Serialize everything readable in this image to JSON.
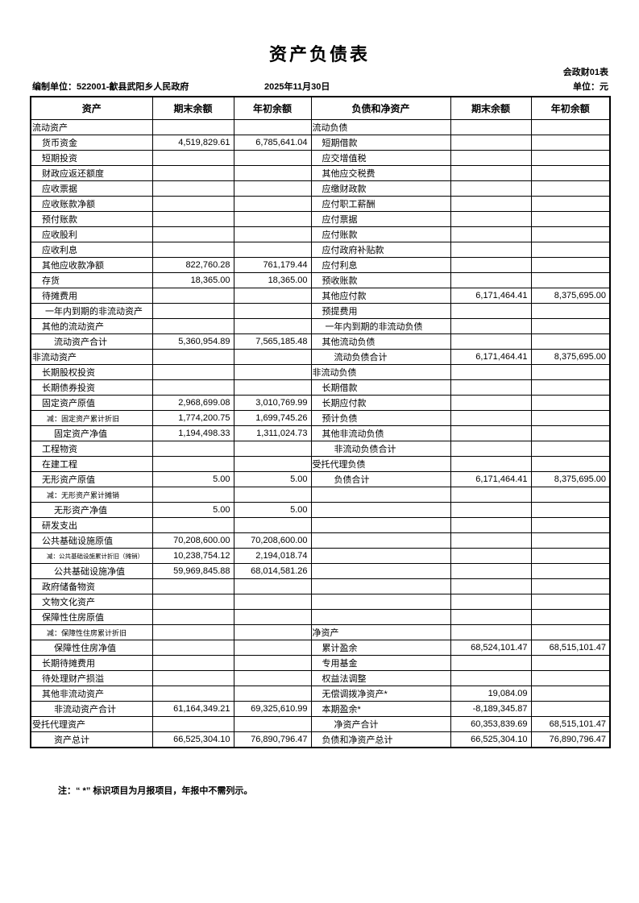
{
  "header": {
    "title": "资产负债表",
    "form_code": "会政财01表",
    "prepared_by": "编制单位：522001-歙县武阳乡人民政府",
    "report_date": "2025年11月30日",
    "unit": "单位：元"
  },
  "table": {
    "columns": [
      "资产",
      "期末余额",
      "年初余额",
      "负债和净资产",
      "期末余额",
      "年初余额"
    ],
    "rows": [
      {
        "l": "流动资产",
        "lt": "sec",
        "l1": "",
        "l2": "",
        "r": "流动负债",
        "rt": "sec",
        "r1": "",
        "r2": ""
      },
      {
        "l": "货币资金",
        "lt": "item",
        "l1": "4,519,829.61",
        "l2": "6,785,641.04",
        "r": "短期借款",
        "rt": "item",
        "r1": "",
        "r2": ""
      },
      {
        "l": "短期投资",
        "lt": "item",
        "l1": "",
        "l2": "",
        "r": "应交增值税",
        "rt": "item",
        "r1": "",
        "r2": ""
      },
      {
        "l": "财政应返还额度",
        "lt": "item",
        "l1": "",
        "l2": "",
        "r": "其他应交税费",
        "rt": "item",
        "r1": "",
        "r2": ""
      },
      {
        "l": "应收票据",
        "lt": "item",
        "l1": "",
        "l2": "",
        "r": "应缴财政款",
        "rt": "item",
        "r1": "",
        "r2": ""
      },
      {
        "l": "应收账款净额",
        "lt": "item",
        "l1": "",
        "l2": "",
        "r": "应付职工薪酬",
        "rt": "item",
        "r1": "",
        "r2": ""
      },
      {
        "l": "预付账款",
        "lt": "item",
        "l1": "",
        "l2": "",
        "r": "应付票据",
        "rt": "item",
        "r1": "",
        "r2": ""
      },
      {
        "l": "应收股利",
        "lt": "item",
        "l1": "",
        "l2": "",
        "r": "应付账款",
        "rt": "item",
        "r1": "",
        "r2": ""
      },
      {
        "l": "应收利息",
        "lt": "item",
        "l1": "",
        "l2": "",
        "r": "应付政府补贴款",
        "rt": "item",
        "r1": "",
        "r2": ""
      },
      {
        "l": "其他应收款净额",
        "lt": "item",
        "l1": "822,760.28",
        "l2": "761,179.44",
        "r": "应付利息",
        "rt": "item",
        "r1": "",
        "r2": ""
      },
      {
        "l": "存货",
        "lt": "item",
        "l1": "18,365.00",
        "l2": "18,365.00",
        "r": "预收账款",
        "rt": "item",
        "r1": "",
        "r2": ""
      },
      {
        "l": "待摊费用",
        "lt": "item",
        "l1": "",
        "l2": "",
        "r": "其他应付款",
        "rt": "item",
        "r1": "6,171,464.41",
        "r2": "8,375,695.00"
      },
      {
        "l": "一年内到期的非流动资产",
        "lt": "item2",
        "l1": "",
        "l2": "",
        "r": "预提费用",
        "rt": "item",
        "r1": "",
        "r2": ""
      },
      {
        "l": "其他的流动资产",
        "lt": "item",
        "l1": "",
        "l2": "",
        "r": "一年内到期的非流动负债",
        "rt": "item2",
        "r1": "",
        "r2": ""
      },
      {
        "l": "流动资产合计",
        "lt": "total",
        "l1": "5,360,954.89",
        "l2": "7,565,185.48",
        "r": "其他流动负债",
        "rt": "item",
        "r1": "",
        "r2": ""
      },
      {
        "l": "非流动资产",
        "lt": "sec",
        "l1": "",
        "l2": "",
        "r": "流动负债合计",
        "rt": "total",
        "r1": "6,171,464.41",
        "r2": "8,375,695.00"
      },
      {
        "l": "长期股权投资",
        "lt": "item",
        "l1": "",
        "l2": "",
        "r": "非流动负债",
        "rt": "sec",
        "r1": "",
        "r2": ""
      },
      {
        "l": "长期债券投资",
        "lt": "item",
        "l1": "",
        "l2": "",
        "r": "长期借款",
        "rt": "item",
        "r1": "",
        "r2": ""
      },
      {
        "l": "固定资产原值",
        "lt": "item",
        "l1": "2,968,699.08",
        "l2": "3,010,769.99",
        "r": "长期应付款",
        "rt": "item",
        "r1": "",
        "r2": ""
      },
      {
        "l": "减：固定资产累计折旧",
        "lt": "sub",
        "l1": "1,774,200.75",
        "l2": "1,699,745.26",
        "r": "预计负债",
        "rt": "item",
        "r1": "",
        "r2": ""
      },
      {
        "l": "固定资产净值",
        "lt": "total",
        "l1": "1,194,498.33",
        "l2": "1,311,024.73",
        "r": "其他非流动负债",
        "rt": "item",
        "r1": "",
        "r2": ""
      },
      {
        "l": "工程物资",
        "lt": "item",
        "l1": "",
        "l2": "",
        "r": "非流动负债合计",
        "rt": "total",
        "r1": "",
        "r2": ""
      },
      {
        "l": "在建工程",
        "lt": "item",
        "l1": "",
        "l2": "",
        "r": "受托代理负债",
        "rt": "sec",
        "r1": "",
        "r2": ""
      },
      {
        "l": "无形资产原值",
        "lt": "item",
        "l1": "5.00",
        "l2": "5.00",
        "r": "负债合计",
        "rt": "total",
        "r1": "6,171,464.41",
        "r2": "8,375,695.00"
      },
      {
        "l": "减：无形资产累计摊销",
        "lt": "sub",
        "l1": "",
        "l2": "",
        "r": "",
        "rt": "item",
        "r1": "",
        "r2": ""
      },
      {
        "l": "无形资产净值",
        "lt": "total",
        "l1": "5.00",
        "l2": "5.00",
        "r": "",
        "rt": "item",
        "r1": "",
        "r2": ""
      },
      {
        "l": "研发支出",
        "lt": "item",
        "l1": "",
        "l2": "",
        "r": "",
        "rt": "item",
        "r1": "",
        "r2": ""
      },
      {
        "l": "公共基础设施原值",
        "lt": "item",
        "l1": "70,208,600.00",
        "l2": "70,208,600.00",
        "r": "",
        "rt": "item",
        "r1": "",
        "r2": ""
      },
      {
        "l": "减：公共基础设施累计折旧（摊销）",
        "lt": "subxs",
        "l1": "10,238,754.12",
        "l2": "2,194,018.74",
        "r": "",
        "rt": "item",
        "r1": "",
        "r2": ""
      },
      {
        "l": "公共基础设施净值",
        "lt": "total",
        "l1": "59,969,845.88",
        "l2": "68,014,581.26",
        "r": "",
        "rt": "item",
        "r1": "",
        "r2": ""
      },
      {
        "l": "政府储备物资",
        "lt": "item",
        "l1": "",
        "l2": "",
        "r": "",
        "rt": "item",
        "r1": "",
        "r2": ""
      },
      {
        "l": "文物文化资产",
        "lt": "item",
        "l1": "",
        "l2": "",
        "r": "",
        "rt": "item",
        "r1": "",
        "r2": ""
      },
      {
        "l": "保障性住房原值",
        "lt": "item",
        "l1": "",
        "l2": "",
        "r": "",
        "rt": "item",
        "r1": "",
        "r2": ""
      },
      {
        "l": "减：保障性住房累计折旧",
        "lt": "sub",
        "l1": "",
        "l2": "",
        "r": "净资产",
        "rt": "sec",
        "r1": "",
        "r2": ""
      },
      {
        "l": "保障性住房净值",
        "lt": "total",
        "l1": "",
        "l2": "",
        "r": "累计盈余",
        "rt": "item",
        "r1": "68,524,101.47",
        "r2": "68,515,101.47"
      },
      {
        "l": "长期待摊费用",
        "lt": "item",
        "l1": "",
        "l2": "",
        "r": "专用基金",
        "rt": "item",
        "r1": "",
        "r2": ""
      },
      {
        "l": "待处理财产损溢",
        "lt": "item",
        "l1": "",
        "l2": "",
        "r": "权益法调整",
        "rt": "item",
        "r1": "",
        "r2": ""
      },
      {
        "l": "其他非流动资产",
        "lt": "item",
        "l1": "",
        "l2": "",
        "r": "无偿调拨净资产*",
        "rt": "item",
        "r1": "19,084.09",
        "r2": ""
      },
      {
        "l": "非流动资产合计",
        "lt": "total",
        "l1": "61,164,349.21",
        "l2": "69,325,610.99",
        "r": "本期盈余*",
        "rt": "item",
        "r1": "-8,189,345.87",
        "r2": ""
      },
      {
        "l": "受托代理资产",
        "lt": "sec",
        "l1": "",
        "l2": "",
        "r": "净资产合计",
        "rt": "total",
        "r1": "60,353,839.69",
        "r2": "68,515,101.47"
      },
      {
        "l": "资产总计",
        "lt": "total",
        "l1": "66,525,304.10",
        "l2": "76,890,796.47",
        "r": "负债和净资产总计",
        "rt": "item",
        "r1": "66,525,304.10",
        "r2": "76,890,796.47"
      }
    ]
  },
  "note": "注：“ *” 标识项目为月报项目，年报中不需列示。"
}
